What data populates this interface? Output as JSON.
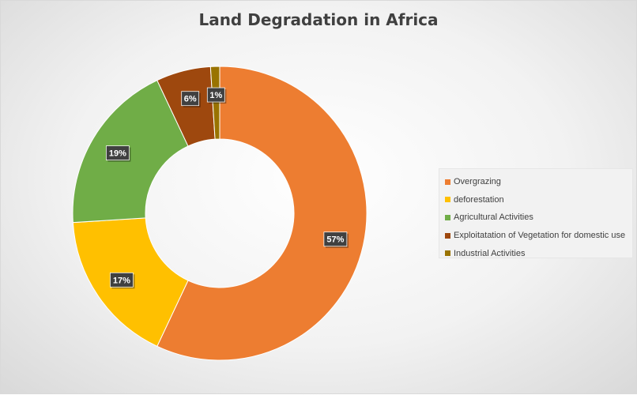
{
  "chart_data": {
    "type": "pie",
    "variant": "donut",
    "title": "Land Degradation in Africa",
    "categories": [
      "Overgrazing",
      "deforestation",
      "Agricultural Activities",
      "Exploitatation of Vegetation for domestic use",
      "Industrial Activities"
    ],
    "values": [
      57,
      17,
      19,
      6,
      1
    ],
    "labels": [
      "57%",
      "17%",
      "19%",
      "6%",
      "1%"
    ],
    "colors": [
      "#ED7D31",
      "#FFC000",
      "#70AD47",
      "#9E480E",
      "#997300"
    ],
    "legend_position": "right"
  }
}
